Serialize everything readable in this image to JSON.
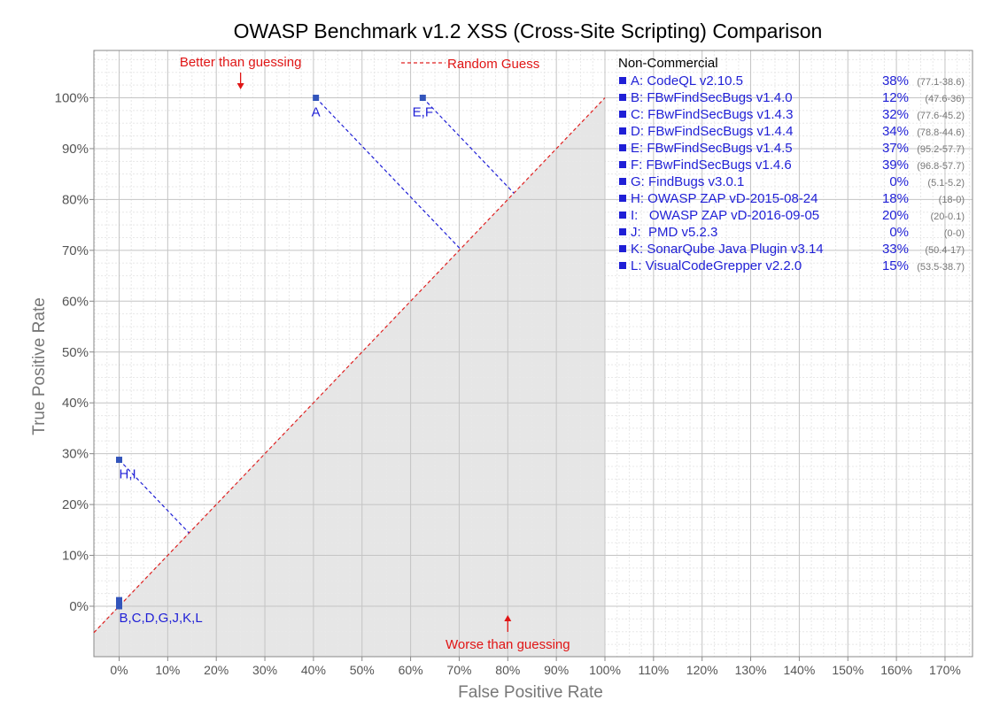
{
  "chart_data": {
    "type": "scatter",
    "title": "OWASP Benchmark v1.2 XSS (Cross-Site Scripting) Comparison",
    "xlabel": "False Positive Rate",
    "ylabel": "True Positive Rate",
    "xlim": [
      -5,
      173
    ],
    "ylim": [
      -10,
      110
    ],
    "x_ticks": [
      "0%",
      "10%",
      "20%",
      "30%",
      "40%",
      "50%",
      "60%",
      "70%",
      "80%",
      "90%",
      "100%",
      "110%",
      "120%",
      "130%",
      "140%",
      "150%",
      "160%",
      "170%"
    ],
    "y_ticks": [
      "0%",
      "10%",
      "20%",
      "30%",
      "40%",
      "50%",
      "60%",
      "70%",
      "80%",
      "90%",
      "100%"
    ],
    "grid": true,
    "point_color": "#3355bb",
    "line_color": "#1f1fd6",
    "random_line_color": "#e02020",
    "shade_color": "#e6e6e6",
    "points": [
      {
        "label": "A",
        "x": 40.5,
        "y": 100
      },
      {
        "label": "E,F",
        "x": 62.5,
        "y": 100
      },
      {
        "label": "H,I",
        "x": 0,
        "y": 28.8
      },
      {
        "label": "B,C,D,G,J,K,L",
        "x": 0,
        "y": 0.5
      }
    ],
    "random_guess": {
      "label": "Random Guess"
    },
    "annotations": {
      "better": "Better than guessing",
      "worse": "Worse than guessing"
    },
    "legend": {
      "placement": "top-right",
      "title": "Non-Commercial",
      "entries": [
        {
          "key": "A:",
          "name": "CodeQL v2.10.5",
          "score": "38%",
          "detail": "(77.1-38.6)"
        },
        {
          "key": "B:",
          "name": "FBwFindSecBugs v1.4.0",
          "score": "12%",
          "detail": "(47.6-36)"
        },
        {
          "key": "C:",
          "name": "FBwFindSecBugs v1.4.3",
          "score": "32%",
          "detail": "(77.6-45.2)"
        },
        {
          "key": "D:",
          "name": "FBwFindSecBugs v1.4.4",
          "score": "34%",
          "detail": "(78.8-44.6)"
        },
        {
          "key": "E:",
          "name": "FBwFindSecBugs v1.4.5",
          "score": "37%",
          "detail": "(95.2-57.7)"
        },
        {
          "key": "F:",
          "name": "FBwFindSecBugs v1.4.6",
          "score": "39%",
          "detail": "(96.8-57.7)"
        },
        {
          "key": "G:",
          "name": "FindBugs v3.0.1",
          "score": "0%",
          "detail": "(5.1-5.2)"
        },
        {
          "key": "H:",
          "name": "OWASP ZAP vD-2015-08-24",
          "score": "18%",
          "detail": "(18-0)"
        },
        {
          "key": "I:",
          "name": "  OWASP ZAP vD-2016-09-05",
          "score": "20%",
          "detail": "(20-0.1)"
        },
        {
          "key": "J:",
          "name": " PMD v5.2.3",
          "score": "0%",
          "detail": "(0-0)"
        },
        {
          "key": "K:",
          "name": "SonarQube Java Plugin v3.14",
          "score": "33%",
          "detail": "(50.4-17)"
        },
        {
          "key": "L:",
          "name": "VisualCodeGrepper v2.2.0",
          "score": "15%",
          "detail": "(53.5-38.7)"
        }
      ]
    }
  }
}
